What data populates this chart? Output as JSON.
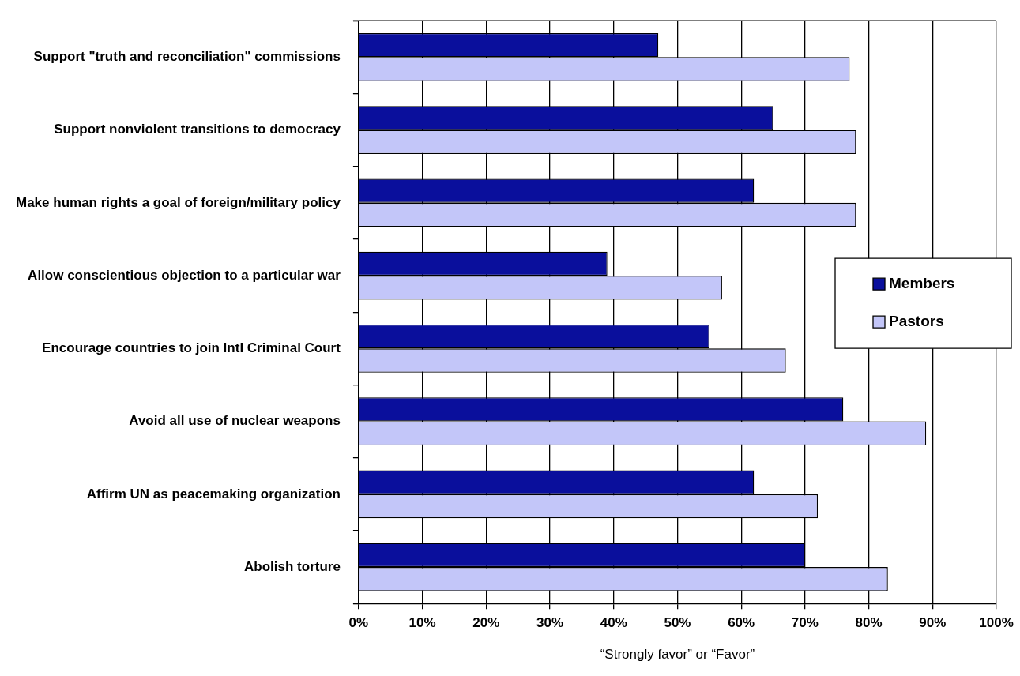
{
  "chart_data": {
    "type": "bar",
    "orientation": "horizontal",
    "xlabel": "“Strongly favor” or “Favor”",
    "categories": [
      "Support \"truth and reconciliation\" commissions",
      "Support nonviolent transitions to democracy",
      "Make human rights a goal of foreign/military policy",
      "Allow conscientious objection to a particular war",
      "Encourage countries to join Intl Criminal Court",
      "Avoid all use of nuclear weapons",
      "Affirm UN as peacemaking organization",
      "Abolish torture"
    ],
    "series": [
      {
        "name": "Members",
        "color": "#0a0f9c",
        "values": [
          47,
          65,
          62,
          39,
          55,
          76,
          62,
          70
        ]
      },
      {
        "name": "Pastors",
        "color": "#c3c6f9",
        "values": [
          77,
          78,
          78,
          57,
          67,
          89,
          72,
          83
        ]
      }
    ],
    "xlim": [
      0,
      100
    ],
    "xticks": [
      {
        "value": 0,
        "label": "0%"
      },
      {
        "value": 10,
        "label": "10%"
      },
      {
        "value": 20,
        "label": "20%"
      },
      {
        "value": 30,
        "label": "30%"
      },
      {
        "value": 40,
        "label": "40%"
      },
      {
        "value": 50,
        "label": "50%"
      },
      {
        "value": 60,
        "label": "60%"
      },
      {
        "value": 70,
        "label": "70%"
      },
      {
        "value": 80,
        "label": "80%"
      },
      {
        "value": 90,
        "label": "90%"
      },
      {
        "value": 100,
        "label": "100%"
      }
    ],
    "grid": "x",
    "legend": "right"
  }
}
